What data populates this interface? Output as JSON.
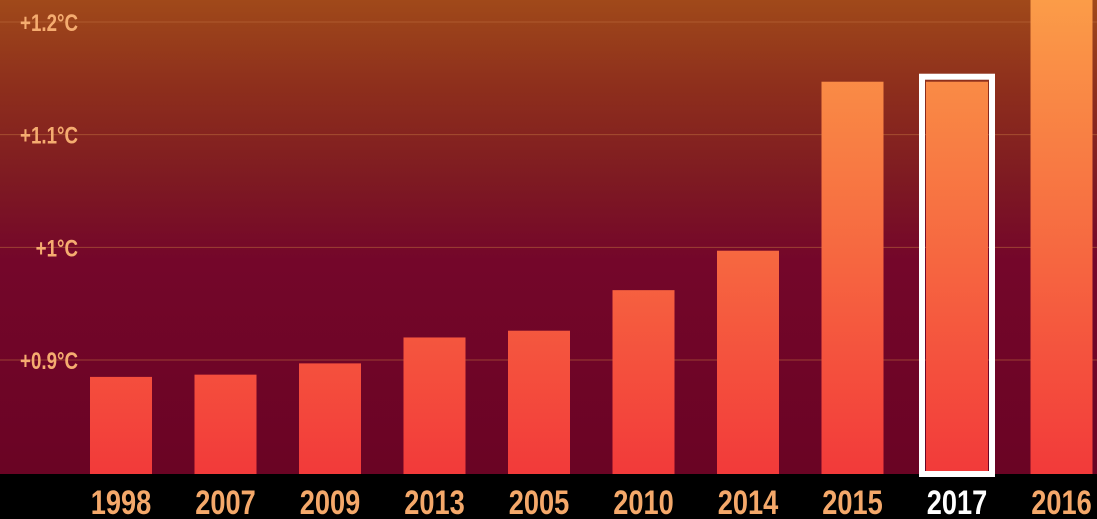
{
  "chart_data": {
    "type": "bar",
    "title": "",
    "xlabel": "",
    "ylabel": "",
    "categories": [
      "1998",
      "2007",
      "2009",
      "2013",
      "2005",
      "2010",
      "2014",
      "2015",
      "2017",
      "2016"
    ],
    "values": [
      0.885,
      0.887,
      0.897,
      0.92,
      0.926,
      0.962,
      0.997,
      1.147,
      1.147,
      1.25
    ],
    "highlighted_category": "2017",
    "y_ticks": [
      {
        "value": 0.9,
        "label": "+0.9°C"
      },
      {
        "value": 1.0,
        "label": "+1°C"
      },
      {
        "value": 1.1,
        "label": "+1.1°C"
      },
      {
        "value": 1.2,
        "label": "+1.2°C"
      }
    ],
    "ylim": [
      0.78,
      1.22
    ],
    "grid": true,
    "legend": "none",
    "colors": {
      "bar_top": "#fb9c48",
      "bar_bottom": "#f23a3a",
      "highlight_outline": "#ffffff",
      "tick_label": "#f5ac70",
      "x_label": "#f4a86a",
      "x_label_highlight": "#ffffff",
      "gridline": "#c0703e"
    }
  }
}
